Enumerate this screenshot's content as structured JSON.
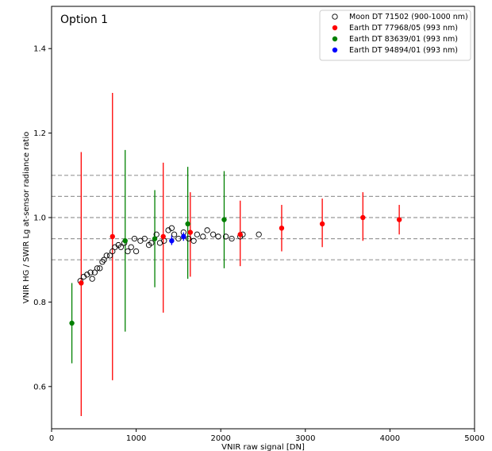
{
  "chart_data": {
    "type": "scatter",
    "title": "Option 1",
    "xlabel": "VNIR raw signal [DN]",
    "ylabel": "VNIR HG / SWIR Lg at-sensor radiance ratio",
    "xlim": [
      0,
      5000
    ],
    "ylim": [
      0.5,
      1.5
    ],
    "xticks": [
      "0",
      "1000",
      "2000",
      "3000",
      "4000",
      "5000"
    ],
    "yticks": [
      "0.6",
      "0.8",
      "1.0",
      "1.2",
      "1.4"
    ],
    "reference_lines": [
      0.9,
      0.95,
      1.0,
      1.05,
      1.1
    ],
    "legend_position": "top-right",
    "series": [
      {
        "name": "Moon DT 71502 (900-1000 nm)",
        "marker": "open-circle",
        "color": "#000000",
        "points": [
          [
            340,
            0.85
          ],
          [
            380,
            0.86
          ],
          [
            420,
            0.865
          ],
          [
            460,
            0.87
          ],
          [
            480,
            0.855
          ],
          [
            510,
            0.87
          ],
          [
            540,
            0.88
          ],
          [
            570,
            0.88
          ],
          [
            600,
            0.895
          ],
          [
            620,
            0.9
          ],
          [
            650,
            0.91
          ],
          [
            690,
            0.91
          ],
          [
            720,
            0.92
          ],
          [
            750,
            0.93
          ],
          [
            790,
            0.935
          ],
          [
            820,
            0.93
          ],
          [
            860,
            0.94
          ],
          [
            900,
            0.92
          ],
          [
            940,
            0.93
          ],
          [
            980,
            0.95
          ],
          [
            1000,
            0.92
          ],
          [
            1050,
            0.945
          ],
          [
            1100,
            0.95
          ],
          [
            1150,
            0.935
          ],
          [
            1180,
            0.94
          ],
          [
            1240,
            0.96
          ],
          [
            1280,
            0.94
          ],
          [
            1330,
            0.945
          ],
          [
            1380,
            0.97
          ],
          [
            1420,
            0.975
          ],
          [
            1450,
            0.96
          ],
          [
            1500,
            0.95
          ],
          [
            1560,
            0.965
          ],
          [
            1620,
            0.95
          ],
          [
            1680,
            0.945
          ],
          [
            1720,
            0.96
          ],
          [
            1790,
            0.955
          ],
          [
            1840,
            0.97
          ],
          [
            1910,
            0.96
          ],
          [
            1970,
            0.955
          ],
          [
            2060,
            0.955
          ],
          [
            2130,
            0.95
          ],
          [
            2230,
            0.955
          ],
          [
            2260,
            0.96
          ],
          [
            2450,
            0.96
          ]
        ]
      },
      {
        "name": "Earth DT 77968/05 (993 nm)",
        "marker": "filled-circle",
        "color": "#ff0000",
        "points": [
          [
            350,
            0.845,
            0.53,
            1.155
          ],
          [
            720,
            0.955,
            0.615,
            1.295
          ],
          [
            1320,
            0.955,
            0.775,
            1.13
          ],
          [
            1640,
            0.965,
            0.86,
            1.06
          ],
          [
            2230,
            0.96,
            0.885,
            1.04
          ],
          [
            2720,
            0.975,
            0.92,
            1.03
          ],
          [
            3200,
            0.985,
            0.93,
            1.045
          ],
          [
            3680,
            1.0,
            0.945,
            1.06
          ],
          [
            4110,
            0.995,
            0.96,
            1.03
          ]
        ]
      },
      {
        "name": "Earth DT 83639/01 (993 nm)",
        "marker": "filled-circle",
        "color": "#008000",
        "points": [
          [
            240,
            0.75,
            0.655,
            0.845
          ],
          [
            870,
            0.945,
            0.73,
            1.16
          ],
          [
            1220,
            0.95,
            0.835,
            1.065
          ],
          [
            1610,
            0.985,
            0.855,
            1.12
          ],
          [
            2040,
            0.995,
            0.88,
            1.11
          ]
        ]
      },
      {
        "name": "Earth DT 94894/01 (993 nm)",
        "marker": "filled-circle",
        "color": "#0000ff",
        "points": [
          [
            1420,
            0.945,
            0.935,
            0.958
          ],
          [
            1560,
            0.955,
            0.945,
            0.965
          ]
        ]
      }
    ]
  }
}
